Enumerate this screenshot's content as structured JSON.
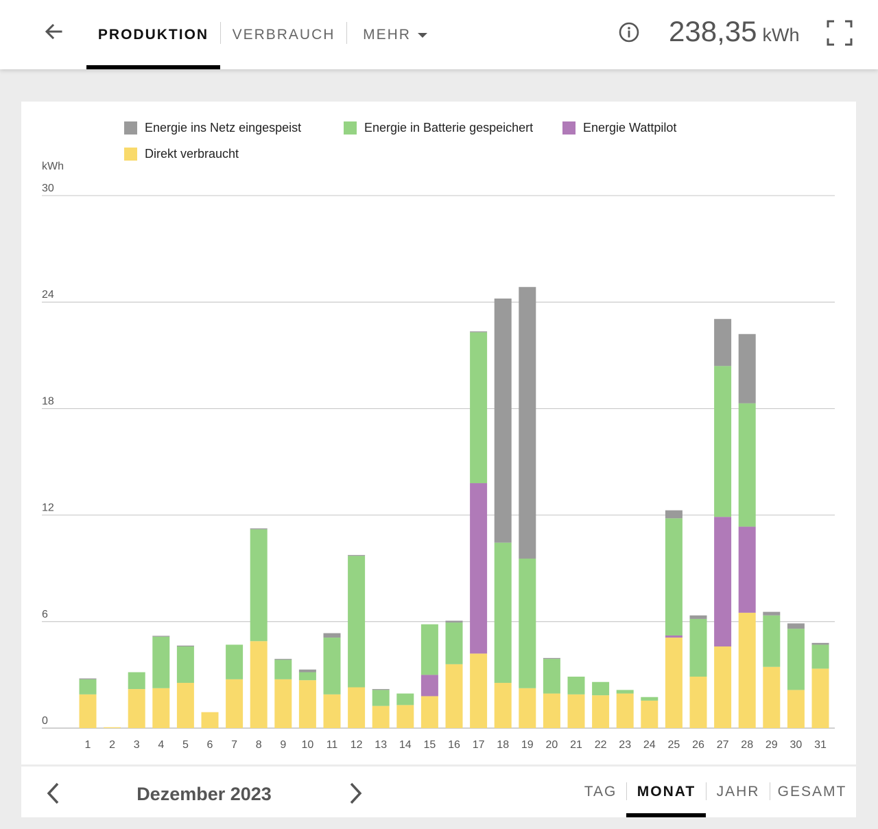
{
  "header": {
    "tabs": [
      {
        "label": "PRODUKTION",
        "active": true
      },
      {
        "label": "VERBRAUCH",
        "active": false
      },
      {
        "label": "MEHR",
        "active": false
      }
    ],
    "total_value": "238,35",
    "total_unit": "kWh",
    "icons": [
      "back-arrow-icon",
      "chevron-down-icon",
      "info-icon",
      "fullscreen-icon"
    ]
  },
  "footer": {
    "period_label": "Dezember 2023",
    "period_tabs": [
      {
        "label": "TAG",
        "active": false
      },
      {
        "label": "MONAT",
        "active": true
      },
      {
        "label": "JAHR",
        "active": false
      },
      {
        "label": "GESAMT",
        "active": false
      }
    ]
  },
  "colors": {
    "grid": "#b3b3b3",
    "battery": "#95d383",
    "wattpilot": "#b07ab8",
    "direct": "#f9da6b",
    "active_underline": "#000000"
  },
  "chart_data": {
    "type": "bar",
    "stacked": true,
    "ylabel": "kWh",
    "ylim": [
      0,
      30
    ],
    "yticks": [
      0,
      6,
      12,
      18,
      24,
      30
    ],
    "grid": true,
    "legend_position": "top",
    "categories": [
      "1",
      "2",
      "3",
      "4",
      "5",
      "6",
      "7",
      "8",
      "9",
      "10",
      "11",
      "12",
      "13",
      "14",
      "15",
      "16",
      "17",
      "18",
      "19",
      "20",
      "21",
      "22",
      "23",
      "24",
      "25",
      "26",
      "27",
      "28",
      "29",
      "30",
      "31"
    ],
    "series": [
      {
        "name": "Direkt verbraucht",
        "color": "#f9da6b",
        "values": [
          1.9,
          0.05,
          2.2,
          2.25,
          2.55,
          0.9,
          2.75,
          4.9,
          2.75,
          2.7,
          1.9,
          2.3,
          1.25,
          1.3,
          1.8,
          3.6,
          4.2,
          2.55,
          2.25,
          1.95,
          1.9,
          1.85,
          1.95,
          1.55,
          5.1,
          2.9,
          4.6,
          6.5,
          3.45,
          2.15,
          3.35
        ]
      },
      {
        "name": "Energie Wattpilot",
        "color": "#b07ab8",
        "values": [
          0,
          0,
          0,
          0,
          0,
          0,
          0,
          0,
          0,
          0,
          0,
          0,
          0,
          0,
          1.2,
          0,
          9.6,
          0,
          0,
          0,
          0,
          0,
          0,
          0,
          0.12,
          0,
          7.3,
          4.85,
          0,
          0,
          0
        ]
      },
      {
        "name": "Energie in Batterie gespeichert",
        "color": "#95d383",
        "values": [
          0.85,
          0,
          0.95,
          2.9,
          2.05,
          0,
          1.95,
          6.3,
          1.1,
          0.45,
          3.2,
          7.4,
          0.9,
          0.65,
          2.85,
          2.35,
          8.5,
          7.9,
          7.3,
          1.95,
          1.0,
          0.75,
          0.2,
          0.2,
          6.6,
          3.25,
          8.5,
          6.95,
          2.9,
          3.45,
          1.35
        ]
      },
      {
        "name": "Energie ins Netz eingespeist",
        "color": "#9a9a9a",
        "values": [
          0.05,
          0,
          0,
          0.05,
          0.05,
          0,
          0,
          0.05,
          0.05,
          0.15,
          0.25,
          0.05,
          0.05,
          0,
          0,
          0.1,
          0.05,
          13.75,
          15.3,
          0.05,
          0,
          0,
          0,
          0,
          0.45,
          0.2,
          2.65,
          3.9,
          0.2,
          0.3,
          0.1
        ]
      }
    ],
    "legend": [
      {
        "label": "Energie ins Netz eingespeist",
        "color": "#9a9a9a"
      },
      {
        "label": "Energie in Batterie gespeichert",
        "color": "#95d383"
      },
      {
        "label": "Energie Wattpilot",
        "color": "#b07ab8"
      },
      {
        "label": "Direkt verbraucht",
        "color": "#f9da6b"
      }
    ]
  }
}
